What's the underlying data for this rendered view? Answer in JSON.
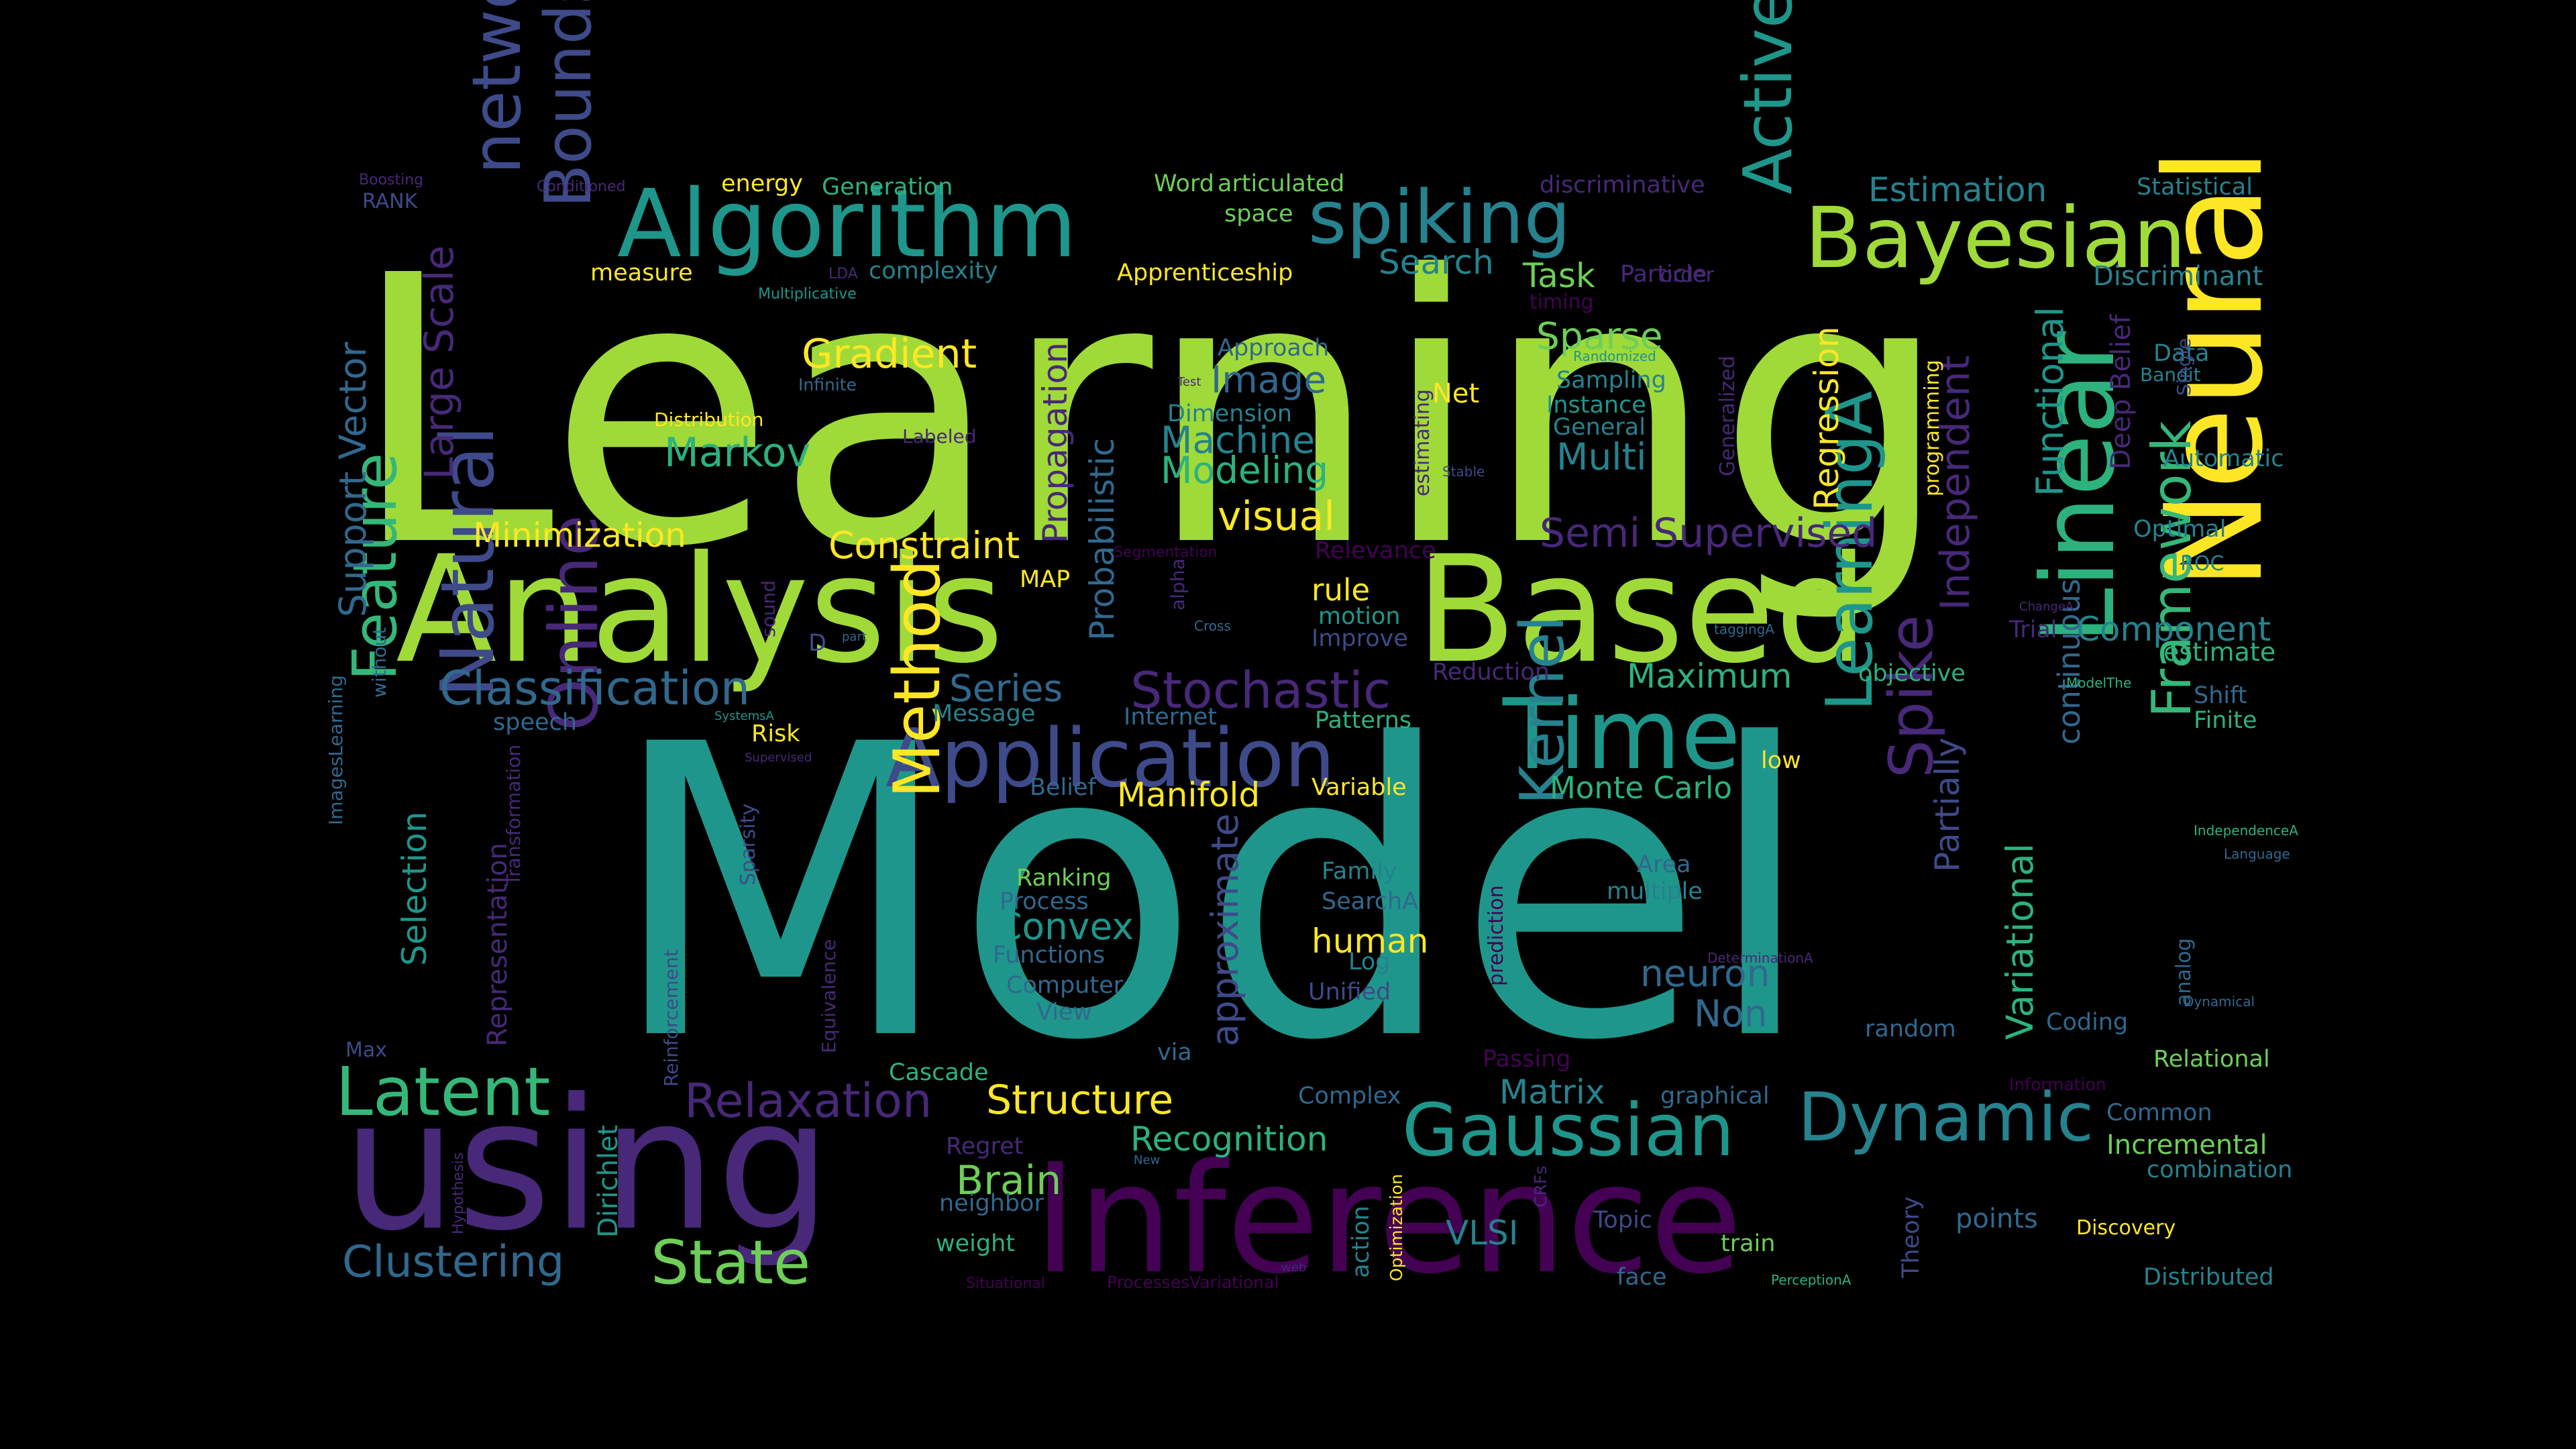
{
  "palette": {
    "background": "#000000",
    "c1": "#a0da39",
    "c2": "#1f968b",
    "c3": "#3e4a89",
    "c4": "#440154",
    "c5": "#fde725",
    "c6": "#2db27d",
    "c7": "#26828e",
    "c8": "#31688e",
    "c9": "#482878",
    "c10": "#6ece58",
    "c11": "#35b779"
  },
  "words": [
    {
      "text": "Learning",
      "c": "c1"
    },
    {
      "text": "Model",
      "c": "c2"
    },
    {
      "text": "Analysis",
      "c": "c1"
    },
    {
      "text": "Based",
      "c": "c1"
    },
    {
      "text": "using",
      "c": "c9"
    },
    {
      "text": "Inference",
      "c": "c4"
    },
    {
      "text": "Neural",
      "c": "c5"
    },
    {
      "text": "Algorithm",
      "c": "c2"
    },
    {
      "text": "spiking",
      "c": "c7"
    },
    {
      "text": "Bayesian",
      "c": "c1"
    },
    {
      "text": "Application",
      "c": "c3"
    },
    {
      "text": "Time",
      "c": "c2"
    },
    {
      "text": "Linear",
      "c": "c6"
    },
    {
      "text": "Gaussian",
      "c": "c2"
    },
    {
      "text": "Dynamic",
      "c": "c7"
    },
    {
      "text": "Latent",
      "c": "c11"
    },
    {
      "text": "network",
      "c": "c3"
    },
    {
      "text": "Active",
      "c": "c2"
    },
    {
      "text": "Bounds",
      "c": "c3"
    },
    {
      "text": "Feature",
      "c": "c11"
    },
    {
      "text": "Natural",
      "c": "c3"
    },
    {
      "text": "Online",
      "c": "c9"
    },
    {
      "text": "Method",
      "c": "c5"
    },
    {
      "text": "LearningA",
      "c": "c2"
    },
    {
      "text": "Spike",
      "c": "c9"
    },
    {
      "text": "Framework",
      "c": "c11"
    },
    {
      "text": "Kernel",
      "c": "c7"
    },
    {
      "text": "Clustering",
      "c": "c8"
    },
    {
      "text": "State",
      "c": "c10"
    },
    {
      "text": "Classification",
      "c": "c8"
    },
    {
      "text": "Stochastic",
      "c": "c9"
    },
    {
      "text": "Relaxation",
      "c": "c9"
    },
    {
      "text": "Structure",
      "c": "c5"
    },
    {
      "text": "Recognition",
      "c": "c6"
    },
    {
      "text": "Brain",
      "c": "c10"
    },
    {
      "text": "Markov",
      "c": "c6"
    },
    {
      "text": "Gradient",
      "c": "c5"
    },
    {
      "text": "Constraint",
      "c": "c5"
    },
    {
      "text": "Minimization",
      "c": "c5"
    },
    {
      "text": "Semi Supervised",
      "c": "c9"
    },
    {
      "text": "visual",
      "c": "c5"
    },
    {
      "text": "Image",
      "c": "c8"
    },
    {
      "text": "Machine",
      "c": "c7"
    },
    {
      "text": "Modeling",
      "c": "c6"
    },
    {
      "text": "Sparse",
      "c": "c10"
    },
    {
      "text": "Multi",
      "c": "c7"
    },
    {
      "text": "Task",
      "c": "c10"
    },
    {
      "text": "Search",
      "c": "c7"
    },
    {
      "text": "Estimation",
      "c": "c7"
    },
    {
      "text": "Component",
      "c": "c7"
    },
    {
      "text": "Maximum",
      "c": "c6"
    },
    {
      "text": "Monte Carlo",
      "c": "c6"
    },
    {
      "text": "Convex",
      "c": "c2"
    },
    {
      "text": "human",
      "c": "c5"
    },
    {
      "text": "Manifold",
      "c": "c5"
    },
    {
      "text": "Series",
      "c": "c8"
    },
    {
      "text": "Matrix",
      "c": "c7"
    },
    {
      "text": "neuron",
      "c": "c8"
    },
    {
      "text": "Non",
      "c": "c8"
    },
    {
      "text": "VLSI",
      "c": "c7"
    },
    {
      "text": "Regression",
      "c": "c5"
    },
    {
      "text": "Independent",
      "c": "c9"
    },
    {
      "text": "Functional",
      "c": "c2"
    },
    {
      "text": "continuous",
      "c": "c8"
    },
    {
      "text": "Variational",
      "c": "c6"
    },
    {
      "text": "Partially",
      "c": "c3"
    },
    {
      "text": "Probabilistic",
      "c": "c8"
    },
    {
      "text": "Propagation",
      "c": "c9"
    },
    {
      "text": "approximate",
      "c": "c3"
    },
    {
      "text": "Large Scale",
      "c": "c9"
    },
    {
      "text": "Support Vector",
      "c": "c8"
    },
    {
      "text": "Selection",
      "c": "c2"
    },
    {
      "text": "Representation",
      "c": "c9"
    },
    {
      "text": "Dirichlet",
      "c": "c2"
    },
    {
      "text": "Incremental",
      "c": "c10"
    },
    {
      "text": "Deep Belief",
      "c": "c9"
    },
    {
      "text": "Data",
      "c": "c7"
    },
    {
      "text": "Optimal",
      "c": "c7"
    },
    {
      "text": "ROC",
      "c": "c7"
    },
    {
      "text": "Automatic",
      "c": "c7"
    },
    {
      "text": "Discriminant",
      "c": "c7"
    },
    {
      "text": "Statistical",
      "c": "c7"
    },
    {
      "text": "Bandit",
      "c": "c7"
    },
    {
      "text": "Single",
      "c": "c3"
    },
    {
      "text": "Finite",
      "c": "c6"
    },
    {
      "text": "Shift",
      "c": "c8"
    },
    {
      "text": "estimate",
      "c": "c6"
    },
    {
      "text": "Relational",
      "c": "c10"
    },
    {
      "text": "Common",
      "c": "c8"
    },
    {
      "text": "combination",
      "c": "c7"
    },
    {
      "text": "Discovery",
      "c": "c5"
    },
    {
      "text": "Distributed",
      "c": "c7"
    },
    {
      "text": "points",
      "c": "c8"
    },
    {
      "text": "Theory",
      "c": "c3"
    },
    {
      "text": "Coding",
      "c": "c8"
    },
    {
      "text": "random",
      "c": "c8"
    },
    {
      "text": "analog",
      "c": "c8"
    },
    {
      "text": "Trial",
      "c": "c9"
    },
    {
      "text": "objective",
      "c": "c6"
    },
    {
      "text": "Reduction",
      "c": "c9"
    },
    {
      "text": "Improve",
      "c": "c3"
    },
    {
      "text": "motion",
      "c": "c2"
    },
    {
      "text": "rule",
      "c": "c5"
    },
    {
      "text": "Net",
      "c": "c5"
    },
    {
      "text": "Sampling",
      "c": "c7"
    },
    {
      "text": "Instance",
      "c": "c2"
    },
    {
      "text": "General",
      "c": "c7"
    },
    {
      "text": "Particle",
      "c": "c9"
    },
    {
      "text": "timing",
      "c": "c4"
    },
    {
      "text": "order",
      "c": "c9"
    },
    {
      "text": "Approach",
      "c": "c8"
    },
    {
      "text": "Dimension",
      "c": "c7"
    },
    {
      "text": "Relevance",
      "c": "c4"
    },
    {
      "text": "MAP",
      "c": "c5"
    },
    {
      "text": "Message",
      "c": "c7"
    },
    {
      "text": "Internet",
      "c": "c8"
    },
    {
      "text": "Patterns",
      "c": "c6"
    },
    {
      "text": "Risk",
      "c": "c5"
    },
    {
      "text": "Belief",
      "c": "c8"
    },
    {
      "text": "Variable",
      "c": "c5"
    },
    {
      "text": "low",
      "c": "c5"
    },
    {
      "text": "Family",
      "c": "c7"
    },
    {
      "text": "SearchA",
      "c": "c8"
    },
    {
      "text": "Log",
      "c": "c7"
    },
    {
      "text": "Unified",
      "c": "c3"
    },
    {
      "text": "Area",
      "c": "c8"
    },
    {
      "text": "multiple",
      "c": "c7"
    },
    {
      "text": "Ranking",
      "c": "c10"
    },
    {
      "text": "Process",
      "c": "c8"
    },
    {
      "text": "Functions",
      "c": "c8"
    },
    {
      "text": "Computer",
      "c": "c8"
    },
    {
      "text": "View",
      "c": "c8"
    },
    {
      "text": "via",
      "c": "c8"
    },
    {
      "text": "Cascade",
      "c": "c6"
    },
    {
      "text": "Complex",
      "c": "c8"
    },
    {
      "text": "Regret",
      "c": "c9"
    },
    {
      "text": "neighbor",
      "c": "c8"
    },
    {
      "text": "weight",
      "c": "c6"
    },
    {
      "text": "Passing",
      "c": "c4"
    },
    {
      "text": "graphical",
      "c": "c8"
    },
    {
      "text": "Topic",
      "c": "c3"
    },
    {
      "text": "train",
      "c": "c10"
    },
    {
      "text": "face",
      "c": "c8"
    },
    {
      "text": "action",
      "c": "c7"
    },
    {
      "text": "measure",
      "c": "c5"
    },
    {
      "text": "complexity",
      "c": "c7"
    },
    {
      "text": "Apprenticeship",
      "c": "c5"
    },
    {
      "text": "energy",
      "c": "c5"
    },
    {
      "text": "Generation",
      "c": "c6"
    },
    {
      "text": "Word",
      "c": "c10"
    },
    {
      "text": "articulated",
      "c": "c10"
    },
    {
      "text": "space",
      "c": "c10"
    },
    {
      "text": "discriminative",
      "c": "c9"
    },
    {
      "text": "RANK",
      "c": "c3"
    },
    {
      "text": "Boosting",
      "c": "c9"
    },
    {
      "text": "Conditioned",
      "c": "c9"
    },
    {
      "text": "LDA",
      "c": "c9"
    },
    {
      "text": "Multiplicative",
      "c": "c2"
    },
    {
      "text": "Infinite",
      "c": "c8"
    },
    {
      "text": "Test",
      "c": "c9"
    },
    {
      "text": "Distribution",
      "c": "c5"
    },
    {
      "text": "Labeled",
      "c": "c9"
    },
    {
      "text": "Randomized",
      "c": "c2"
    },
    {
      "text": "Segmentation",
      "c": "c4"
    },
    {
      "text": "estimating",
      "c": "c9"
    },
    {
      "text": "Stable",
      "c": "c3"
    },
    {
      "text": "Generalized",
      "c": "c9"
    },
    {
      "text": "programming",
      "c": "c5"
    },
    {
      "text": "Max",
      "c": "c3"
    },
    {
      "text": "speech",
      "c": "c8"
    },
    {
      "text": "ImagesLearning",
      "c": "c8"
    },
    {
      "text": "without",
      "c": "c8"
    },
    {
      "text": "sound",
      "c": "c9"
    },
    {
      "text": "D",
      "c": "c3"
    },
    {
      "text": "part",
      "c": "c8"
    },
    {
      "text": "SystemsA",
      "c": "c2"
    },
    {
      "text": "Supervised",
      "c": "c9"
    },
    {
      "text": "Sparsity",
      "c": "c3"
    },
    {
      "text": "Transformation",
      "c": "c9"
    },
    {
      "text": "Reinforcement",
      "c": "c3"
    },
    {
      "text": "Equivalence",
      "c": "c9"
    },
    {
      "text": "Hypothesis",
      "c": "c9"
    },
    {
      "text": "alpha",
      "c": "c9"
    },
    {
      "text": "Cross",
      "c": "c8"
    },
    {
      "text": "prediction",
      "c": "c4"
    },
    {
      "text": "Optimization",
      "c": "c5"
    },
    {
      "text": "CRFs",
      "c": "c9"
    },
    {
      "text": "New",
      "c": "c8"
    },
    {
      "text": "web",
      "c": "c9"
    },
    {
      "text": "Situational",
      "c": "c4"
    },
    {
      "text": "ProcessesVariational",
      "c": "c4"
    },
    {
      "text": "PerceptionA",
      "c": "c6"
    },
    {
      "text": "DeterminationA",
      "c": "c9"
    },
    {
      "text": "Dynamical",
      "c": "c8"
    },
    {
      "text": "Information",
      "c": "c4"
    },
    {
      "text": "IndependenceA",
      "c": "c6"
    },
    {
      "text": "Language",
      "c": "c8"
    },
    {
      "text": "ModelThe",
      "c": "c6"
    },
    {
      "text": "taggingA",
      "c": "c8"
    },
    {
      "text": "ChangeA",
      "c": "c9"
    }
  ]
}
